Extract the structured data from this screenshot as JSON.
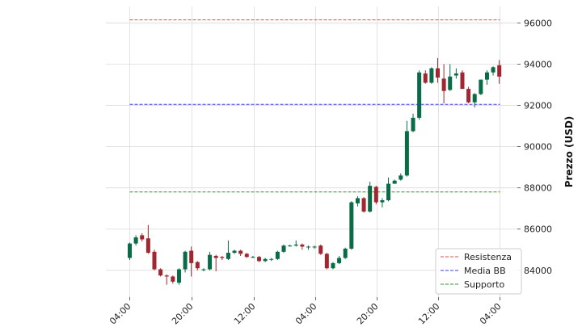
{
  "chart_data": {
    "type": "candlestick",
    "title": "",
    "xlabel": "",
    "ylabel": "Prezzo (USD)",
    "x_ticks": [
      "04:00",
      "20:00",
      "12:00",
      "04:00",
      "20:00",
      "12:00",
      "04:00"
    ],
    "y_ticks": [
      "84000",
      "86000",
      "88000",
      "90000",
      "92000",
      "94000",
      "96000"
    ],
    "ylim": [
      82700,
      96800
    ],
    "grid": true,
    "legend_position": "bottom-right",
    "colors": {
      "up": "#0a6b47",
      "down": "#a0262f"
    },
    "candles": [
      [
        84600,
        85300,
        85350,
        84500
      ],
      [
        85300,
        85600,
        85700,
        85200
      ],
      [
        85700,
        85500,
        85800,
        85400
      ],
      [
        85550,
        84850,
        86200,
        84800
      ],
      [
        84900,
        84050,
        85000,
        84000
      ],
      [
        84050,
        83750,
        84100,
        83700
      ],
      [
        83750,
        83700,
        83800,
        83300
      ],
      [
        83700,
        83450,
        83750,
        83350
      ],
      [
        83400,
        84050,
        84100,
        83300
      ],
      [
        84050,
        84900,
        84950,
        83900
      ],
      [
        84950,
        84350,
        85150,
        83700
      ],
      [
        84400,
        84100,
        84450,
        84000
      ],
      [
        84050,
        84050,
        84100,
        83950
      ],
      [
        84050,
        84750,
        84900,
        84000
      ],
      [
        84700,
        84600,
        84750,
        83950
      ],
      [
        84650,
        84600,
        84700,
        84500
      ],
      [
        84550,
        84850,
        85450,
        84500
      ],
      [
        84850,
        84950,
        85000,
        84800
      ],
      [
        84950,
        84800,
        85000,
        84700
      ],
      [
        84800,
        84650,
        84850,
        84600
      ],
      [
        84650,
        84650,
        84700,
        84600
      ],
      [
        84650,
        84450,
        84700,
        84400
      ],
      [
        84450,
        84550,
        84600,
        84400
      ],
      [
        84550,
        84550,
        84600,
        84450
      ],
      [
        84550,
        84900,
        84950,
        84500
      ],
      [
        84900,
        85200,
        85250,
        84850
      ],
      [
        85200,
        85200,
        85250,
        85150
      ],
      [
        85200,
        85250,
        85450,
        85150
      ],
      [
        85250,
        85150,
        85300,
        85000
      ],
      [
        85150,
        85150,
        85200,
        85000
      ],
      [
        85150,
        85150,
        85200,
        85050
      ],
      [
        85200,
        84800,
        85250,
        84750
      ],
      [
        84800,
        84100,
        84850,
        84050
      ],
      [
        84100,
        84350,
        84400,
        84050
      ],
      [
        84350,
        84600,
        84700,
        84300
      ],
      [
        84600,
        85050,
        85100,
        84550
      ],
      [
        85050,
        87300,
        87350,
        85000
      ],
      [
        87250,
        87500,
        87600,
        87100
      ],
      [
        87500,
        86850,
        87550,
        86800
      ],
      [
        86850,
        88100,
        88300,
        86800
      ],
      [
        88050,
        87300,
        88100,
        87200
      ],
      [
        87300,
        87400,
        87500,
        87050
      ],
      [
        87400,
        88200,
        88500,
        87350
      ],
      [
        88200,
        88350,
        88400,
        88200
      ],
      [
        88400,
        88600,
        88700,
        88350
      ],
      [
        88600,
        90750,
        91250,
        88550
      ],
      [
        90750,
        91400,
        91600,
        90700
      ],
      [
        91400,
        93600,
        93700,
        91300
      ],
      [
        93550,
        93100,
        93700,
        93050
      ],
      [
        93100,
        93800,
        93850,
        93050
      ],
      [
        93800,
        93350,
        94300,
        93100
      ],
      [
        93300,
        92700,
        94000,
        92100
      ],
      [
        92750,
        93400,
        94000,
        92700
      ],
      [
        93450,
        93550,
        93800,
        93300
      ],
      [
        93600,
        92800,
        93700,
        92800
      ],
      [
        92800,
        92150,
        92900,
        92100
      ],
      [
        92150,
        92550,
        92600,
        91900
      ],
      [
        92550,
        93250,
        93250,
        92500
      ],
      [
        93250,
        93600,
        93700,
        93000
      ],
      [
        93600,
        93850,
        93900,
        93450
      ],
      [
        93950,
        93400,
        94200,
        93050
      ]
    ],
    "reference_lines": [
      {
        "name": "Resistenza",
        "value": 96150,
        "color": "#e84848"
      },
      {
        "name": "Media BB",
        "value": 92050,
        "color": "#3a3af0"
      },
      {
        "name": "Supporto",
        "value": 87800,
        "color": "#2a9a2a"
      }
    ]
  }
}
